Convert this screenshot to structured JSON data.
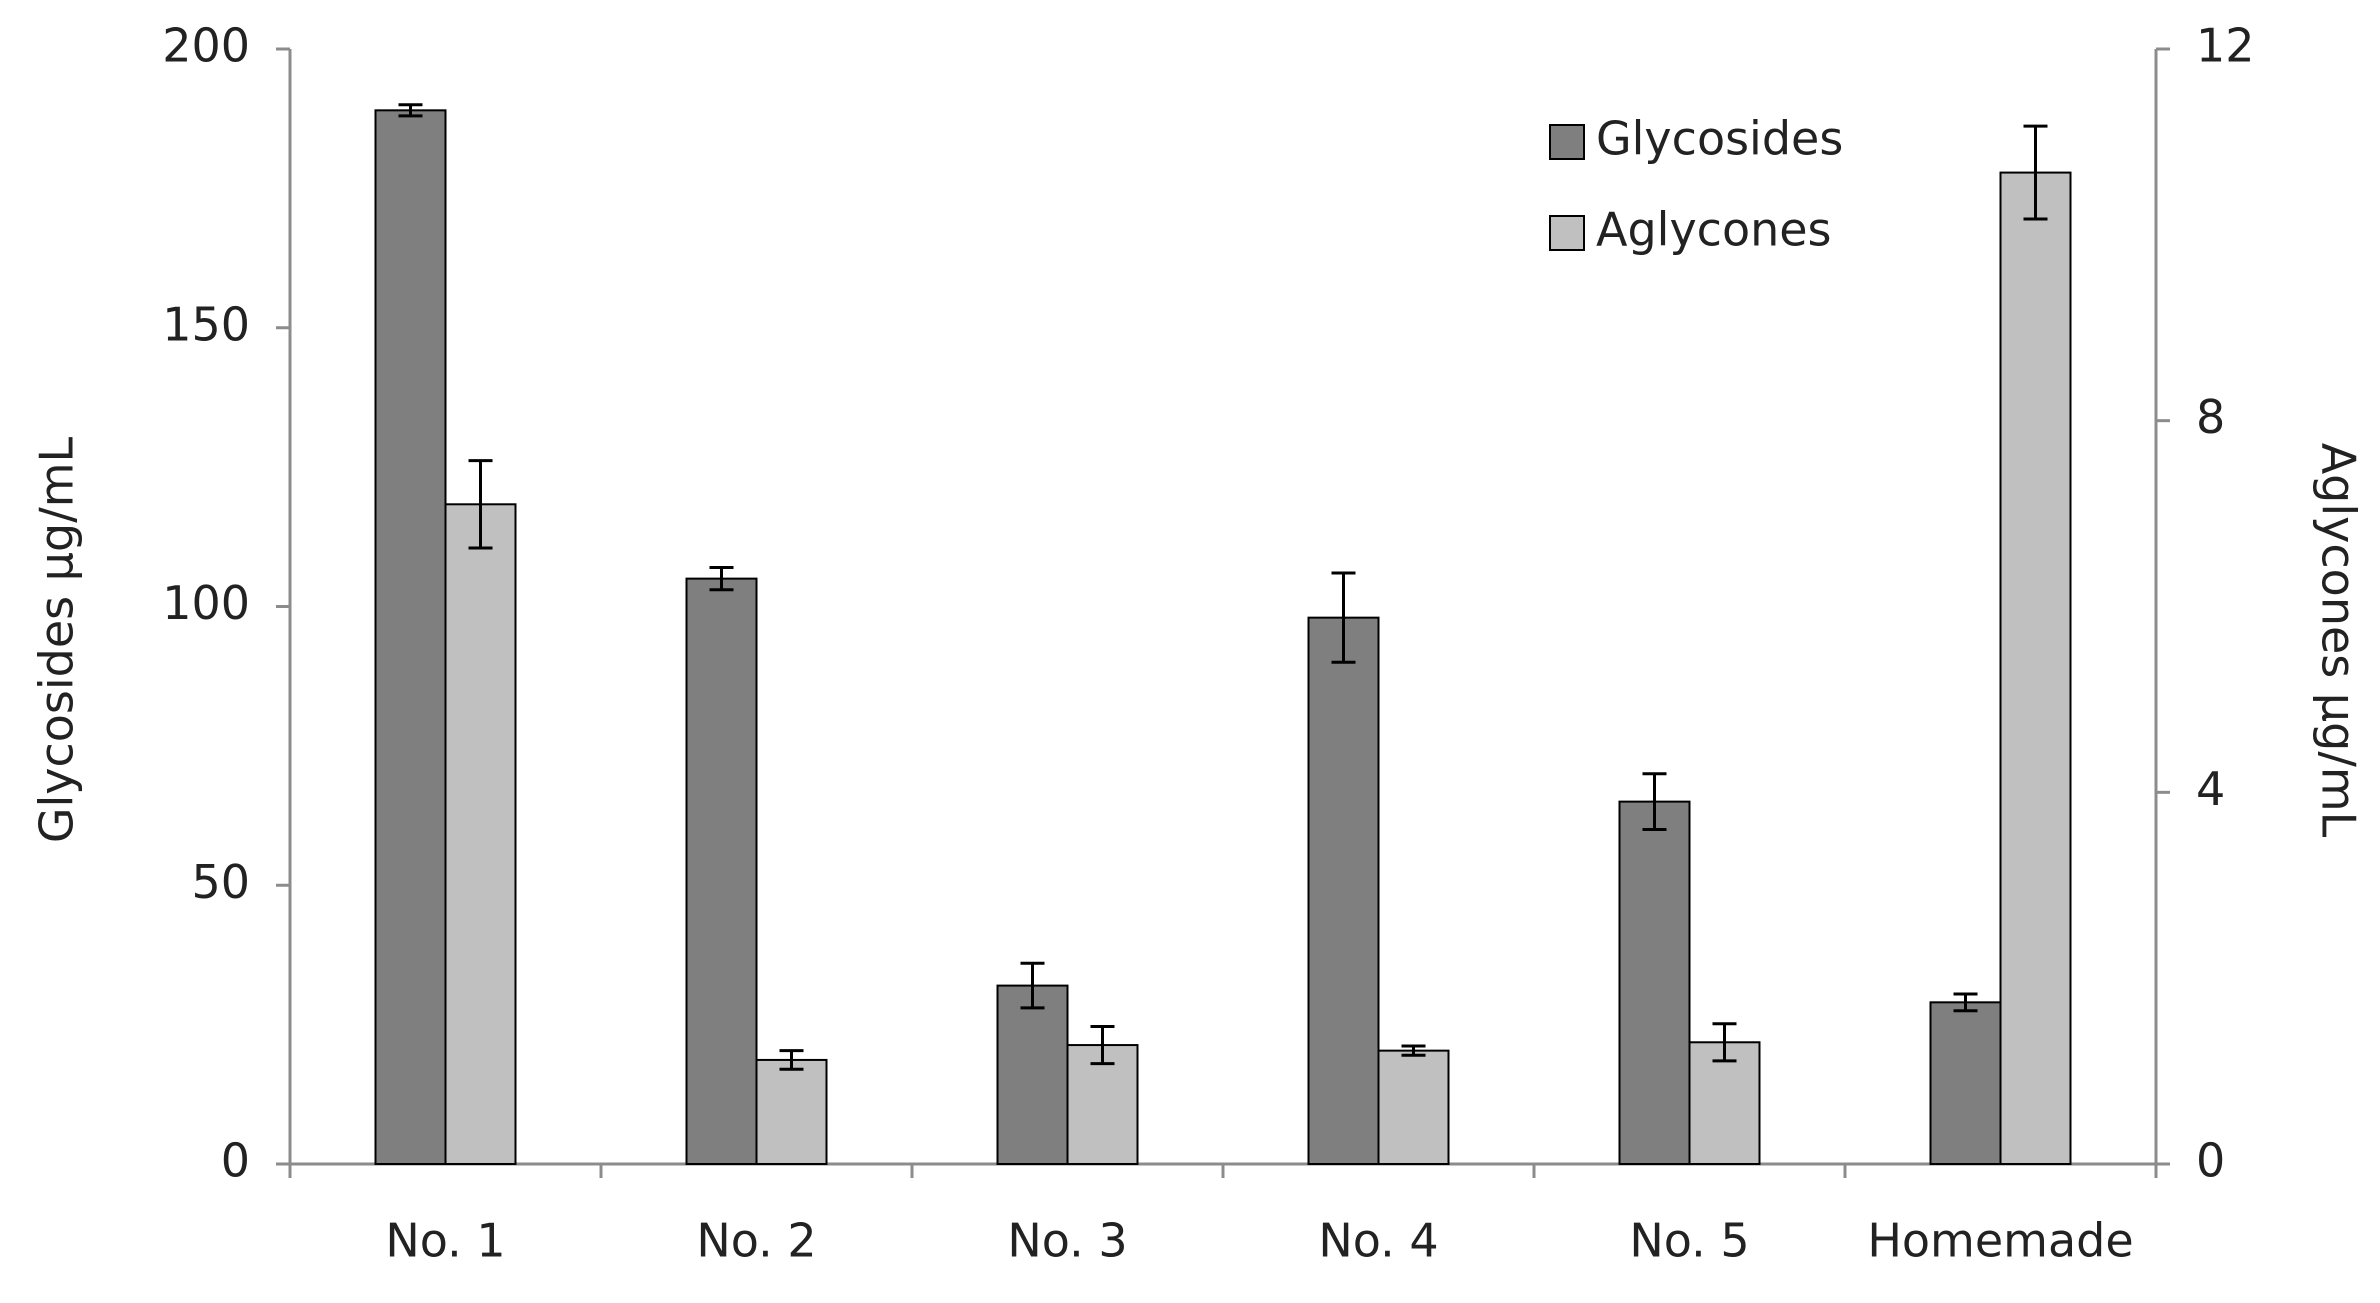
{
  "chart_data": {
    "type": "bar",
    "categories": [
      "No. 1",
      "No. 2",
      "No. 3",
      "No. 4",
      "No. 5",
      "Homemade"
    ],
    "series": [
      {
        "name": "Glycosides",
        "color": "#7f7f7f",
        "axis": "y",
        "values": [
          189,
          105,
          32,
          98,
          65,
          29
        ],
        "errors": [
          1,
          2,
          4,
          8,
          5,
          1.5
        ]
      },
      {
        "name": "Aglycones",
        "color": "#c0c0c0",
        "axis": "y2",
        "values": [
          7.1,
          1.12,
          1.28,
          1.22,
          1.31,
          10.67
        ],
        "errors": [
          0.47,
          0.1,
          0.2,
          0.05,
          0.2,
          0.5
        ]
      }
    ],
    "ylabel": "Glycosides µg/mL",
    "y2label": "Aglycones µg/mL",
    "ylim": [
      0,
      200
    ],
    "yticks": [
      0,
      50,
      100,
      150,
      200
    ],
    "y2lim": [
      0,
      12
    ],
    "y2ticks": [
      0,
      4,
      8,
      12
    ],
    "legend": "upper-right",
    "grid": false
  }
}
